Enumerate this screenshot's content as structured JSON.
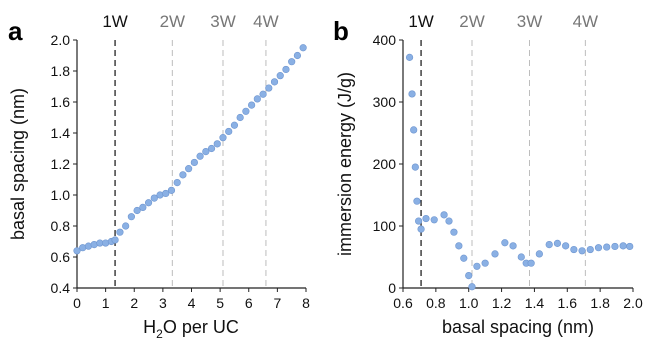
{
  "figure": {
    "panels": [
      {
        "letter": "a",
        "xlabel": {
          "pre": "H",
          "sub": "2",
          "post": "O per UC"
        },
        "ylabel": "basal spacing (nm)",
        "ref_labels": [
          "1W",
          "2W",
          "3W",
          "4W"
        ]
      },
      {
        "letter": "b",
        "xlabel": "basal spacing (nm)",
        "ylabel": "immersion energy (J/g)",
        "ref_labels": [
          "1W",
          "2W",
          "3W",
          "4W"
        ]
      }
    ]
  },
  "colors": {
    "marker": "#8ab0e4",
    "marker_stroke": "#6f96d0",
    "ref_line_1W": "#222222",
    "ref_line_other": "#bdbdbd",
    "ref_label_1W": "#111111",
    "ref_label_other": "#777777",
    "axis": "#222222"
  },
  "chart_data": [
    {
      "type": "scatter",
      "panel": "a",
      "xlabel": "H2O per UC",
      "ylabel": "basal spacing (nm)",
      "xlim": [
        0,
        8
      ],
      "ylim": [
        0.4,
        2.0
      ],
      "xticks": [
        0,
        1,
        2,
        3,
        4,
        5,
        6,
        7,
        8
      ],
      "yticks": [
        0.4,
        0.6,
        0.8,
        1.0,
        1.2,
        1.4,
        1.6,
        1.8,
        2.0
      ],
      "ytick_labels": [
        "0.4",
        "0.6",
        "0.8",
        "1.0",
        "1.2",
        "1.4",
        "1.6",
        "1.8",
        "2.0"
      ],
      "reference_lines": [
        {
          "label": "1W",
          "x": 1.33,
          "emphasis": true
        },
        {
          "label": "2W",
          "x": 3.33,
          "emphasis": false
        },
        {
          "label": "3W",
          "x": 5.1,
          "emphasis": false
        },
        {
          "label": "4W",
          "x": 6.6,
          "emphasis": false
        }
      ],
      "x": [
        0,
        0.2,
        0.4,
        0.6,
        0.8,
        1.0,
        1.2,
        1.33,
        1.5,
        1.7,
        1.9,
        2.1,
        2.3,
        2.5,
        2.7,
        2.9,
        3.1,
        3.3,
        3.5,
        3.7,
        3.9,
        4.1,
        4.3,
        4.5,
        4.7,
        4.9,
        5.1,
        5.3,
        5.5,
        5.7,
        5.9,
        6.1,
        6.3,
        6.5,
        6.7,
        6.9,
        7.1,
        7.3,
        7.5,
        7.7,
        7.9
      ],
      "y": [
        0.64,
        0.66,
        0.67,
        0.68,
        0.69,
        0.69,
        0.7,
        0.71,
        0.76,
        0.8,
        0.86,
        0.9,
        0.92,
        0.95,
        0.98,
        1.0,
        1.01,
        1.03,
        1.08,
        1.13,
        1.17,
        1.21,
        1.25,
        1.28,
        1.3,
        1.33,
        1.37,
        1.41,
        1.45,
        1.5,
        1.54,
        1.58,
        1.62,
        1.65,
        1.69,
        1.73,
        1.77,
        1.81,
        1.86,
        1.9,
        1.95
      ]
    },
    {
      "type": "scatter",
      "panel": "b",
      "xlabel": "basal spacing (nm)",
      "ylabel": "immersion energy (J/g)",
      "xlim": [
        0.6,
        2.0
      ],
      "ylim": [
        0,
        400
      ],
      "xticks": [
        0.6,
        0.8,
        1.0,
        1.2,
        1.4,
        1.6,
        1.8,
        2.0
      ],
      "xtick_labels": [
        "0.6",
        "0.8",
        "1.0",
        "1.2",
        "1.4",
        "1.6",
        "1.8",
        "2.0"
      ],
      "yticks": [
        0,
        100,
        200,
        300,
        400
      ],
      "reference_lines": [
        {
          "label": "1W",
          "x": 0.71,
          "emphasis": true
        },
        {
          "label": "2W",
          "x": 1.02,
          "emphasis": false
        },
        {
          "label": "3W",
          "x": 1.37,
          "emphasis": false
        },
        {
          "label": "4W",
          "x": 1.71,
          "emphasis": false
        }
      ],
      "x": [
        0.64,
        0.655,
        0.665,
        0.675,
        0.685,
        0.695,
        0.71,
        0.74,
        0.79,
        0.85,
        0.88,
        0.91,
        0.94,
        0.97,
        1.0,
        1.02,
        1.05,
        1.1,
        1.16,
        1.22,
        1.27,
        1.32,
        1.35,
        1.38,
        1.43,
        1.49,
        1.54,
        1.59,
        1.64,
        1.69,
        1.74,
        1.79,
        1.84,
        1.89,
        1.94,
        1.98
      ],
      "y": [
        372,
        313,
        255,
        195,
        140,
        108,
        95,
        112,
        110,
        118,
        108,
        90,
        68,
        48,
        20,
        2,
        35,
        40,
        55,
        73,
        68,
        50,
        40,
        40,
        55,
        70,
        72,
        68,
        62,
        60,
        62,
        65,
        66,
        67,
        68,
        67
      ]
    }
  ]
}
